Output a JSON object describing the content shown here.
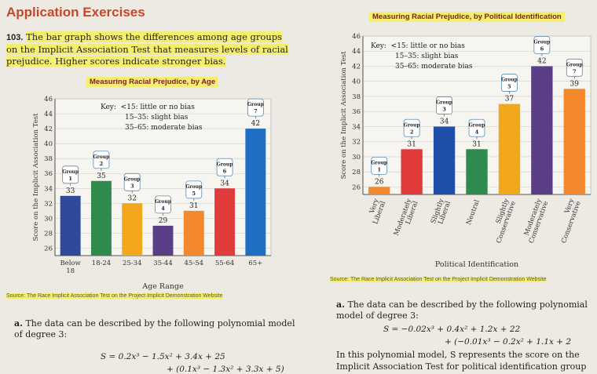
{
  "page": {
    "heading": "Application Exercises",
    "problem_number": "103.",
    "problem_text": "The bar graph shows the differences among age groups on the Implicit Association Test that measures levels of racial prejudice. Higher scores indicate stronger bias."
  },
  "left_chart": {
    "chart_data": {
      "type": "bar",
      "title": "Measuring Racial Prejudice, by Age",
      "xlabel": "Age Range",
      "ylabel": "Score on the Implicit Association Test",
      "ylim": [
        25,
        46
      ],
      "yticks": [
        26,
        28,
        30,
        32,
        34,
        36,
        38,
        40,
        42,
        44,
        46
      ],
      "categories": [
        "Below 18",
        "18-24",
        "25-34",
        "35-44",
        "45-54",
        "55-64",
        "65+"
      ],
      "values": [
        33,
        35,
        32,
        29,
        31,
        34,
        42
      ],
      "group_labels": [
        "Group 1",
        "Group 2",
        "Group 3",
        "Group 4",
        "Group 5",
        "Group 6",
        "Group 7"
      ],
      "colors": [
        "#2f4a9a",
        "#2e8a4d",
        "#f2a81d",
        "#5a3f86",
        "#f3892c",
        "#e23b3b",
        "#1e6fc4"
      ],
      "key": [
        "Key:  <15: little or no bias",
        "15–35: slight bias",
        "35–65: moderate bias"
      ],
      "source": "Source: The Race Implicit Association Test on the Project Implicit Demonstration Website"
    }
  },
  "right_chart": {
    "chart_data": {
      "type": "bar",
      "title": "Measuring Racial Prejudice, by Political Identification",
      "xlabel": "Political Identification",
      "ylabel": "Score on the Implicit Association Test",
      "ylim": [
        25,
        46
      ],
      "yticks": [
        26,
        28,
        30,
        32,
        34,
        36,
        38,
        40,
        42,
        44,
        46
      ],
      "categories": [
        "Very Liberal",
        "Moderately Liberal",
        "Slightly Liberal",
        "Neutral",
        "Slightly Conservative",
        "Moderately Conservative",
        "Very Conservative"
      ],
      "values": [
        26,
        31,
        34,
        31,
        37,
        42,
        39
      ],
      "group_labels": [
        "Group 1",
        "Group 2",
        "Group 3",
        "Group 4",
        "Group 5",
        "Group 6",
        "Group 7"
      ],
      "colors": [
        "#f3892c",
        "#e23b3b",
        "#1f4fa8",
        "#2e8a4d",
        "#f2a81d",
        "#5a3f86",
        "#f3892c"
      ],
      "key": [
        "Key:  <15: little or no bias",
        "15–35: slight bias",
        "35–65: moderate bias"
      ],
      "source": "Source: The Race Implicit Association Test on the Project Implicit Demonstration Website"
    }
  },
  "left_part_a": {
    "label": "a.",
    "text": "The data can be described by the following polynomial model of degree 3:",
    "formula": "S = 0.2x³ − 1.5x² + 3.4x + 25",
    "formula2": "+ (0.1x³ − 1.3x² + 3.3x + 5)"
  },
  "right_part_a": {
    "label": "a.",
    "text": "The data can be described by the following polynomial model of degree 3:",
    "formula": "S = −0.02x³ + 0.4x² + 1.2x + 22",
    "formula2": "+ (−0.01x³ − 0.2x² + 1.1x + 2",
    "text2": "In this polynomial model, S represents the score on the",
    "text3": "Implicit Association Test for political identification group"
  }
}
